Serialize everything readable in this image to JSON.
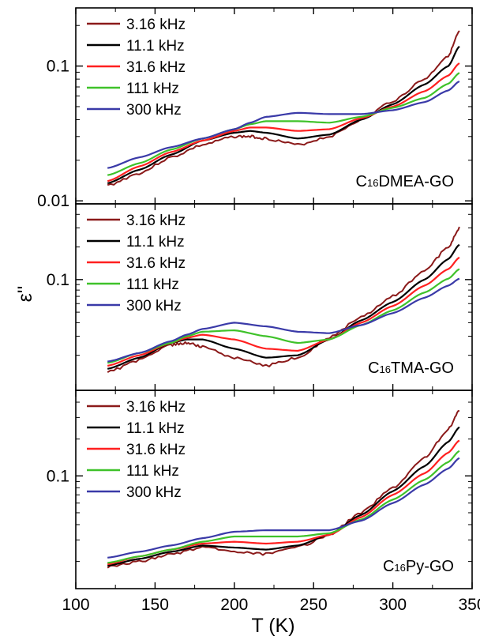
{
  "chart_data": {
    "type": "line",
    "xlabel": "T (K)",
    "ylabel": "ε''",
    "xlim": [
      100,
      350
    ],
    "x_ticks": [
      "100",
      "150",
      "200",
      "250",
      "300",
      "350"
    ],
    "y_scale": "log",
    "grid": false,
    "legend_position": "top-left",
    "series_names": [
      "3.16 kHz",
      "11.1 kHz",
      "31.6 kHz",
      "111 kHz",
      "300 kHz"
    ],
    "series_colors": [
      "#8b1a1a",
      "#000000",
      "#ff2020",
      "#3fc22a",
      "#3a3aa8"
    ],
    "panels": [
      {
        "label_prefix": "C",
        "label_sub": "16",
        "label_suffix": "DMEA-GO",
        "ylim": [
          0.0095,
          0.27
        ],
        "y_ticks": [
          {
            "value": 0.01,
            "label": "0.01"
          },
          {
            "value": 0.1,
            "label": "0.1"
          }
        ],
        "x": [
          120,
          140,
          160,
          180,
          200,
          210,
          220,
          240,
          260,
          280,
          300,
          320,
          335,
          342
        ],
        "series": [
          {
            "name": "3.16 kHz",
            "values": [
              0.013,
              0.016,
              0.021,
              0.026,
              0.03,
              0.03,
              0.029,
              0.026,
              0.03,
              0.04,
              0.055,
              0.08,
              0.12,
              0.18
            ]
          },
          {
            "name": "11.1 kHz",
            "values": [
              0.0135,
              0.017,
              0.022,
              0.028,
              0.032,
              0.033,
              0.032,
              0.029,
              0.031,
              0.04,
              0.052,
              0.073,
              0.1,
              0.14
            ]
          },
          {
            "name": "31.6 kHz",
            "values": [
              0.014,
              0.018,
              0.023,
              0.028,
              0.033,
              0.035,
              0.035,
              0.033,
              0.034,
              0.041,
              0.05,
              0.065,
              0.085,
              0.105
            ]
          },
          {
            "name": "111 kHz",
            "values": [
              0.0155,
              0.019,
              0.024,
              0.029,
              0.034,
              0.037,
              0.039,
              0.039,
              0.038,
              0.042,
              0.049,
              0.058,
              0.074,
              0.089
            ]
          },
          {
            "name": "300 kHz",
            "values": [
              0.0175,
              0.021,
              0.025,
              0.029,
              0.034,
              0.038,
              0.042,
              0.045,
              0.044,
              0.044,
              0.047,
              0.054,
              0.066,
              0.077
            ]
          }
        ]
      },
      {
        "label_prefix": "C",
        "label_sub": "16",
        "label_suffix": "TMA-GO",
        "ylim": [
          0.0095,
          0.5
        ],
        "y_ticks": [
          {
            "value": 0.1,
            "label": "0.1"
          }
        ],
        "x": [
          120,
          140,
          160,
          170,
          180,
          200,
          220,
          240,
          260,
          280,
          300,
          320,
          335,
          342
        ],
        "series": [
          {
            "name": "3.16 kHz",
            "values": [
              0.014,
              0.018,
              0.025,
              0.026,
              0.024,
              0.019,
              0.016,
              0.019,
              0.029,
              0.045,
              0.07,
              0.12,
              0.2,
              0.3
            ]
          },
          {
            "name": "11.1 kHz",
            "values": [
              0.015,
              0.019,
              0.026,
              0.028,
              0.028,
              0.023,
              0.019,
              0.02,
              0.028,
              0.042,
              0.062,
              0.1,
              0.155,
              0.21
            ]
          },
          {
            "name": "31.6 kHz",
            "values": [
              0.016,
              0.02,
              0.026,
              0.029,
              0.031,
              0.028,
              0.023,
              0.022,
              0.028,
              0.04,
              0.057,
              0.088,
              0.125,
              0.16
            ]
          },
          {
            "name": "111 kHz",
            "values": [
              0.017,
              0.021,
              0.026,
              0.03,
              0.033,
              0.034,
              0.03,
              0.026,
              0.028,
              0.038,
              0.052,
              0.076,
              0.102,
              0.125
            ]
          },
          {
            "name": "300 kHz",
            "values": [
              0.0175,
              0.021,
              0.027,
              0.031,
              0.035,
              0.04,
              0.037,
              0.033,
              0.032,
              0.038,
              0.049,
              0.068,
              0.088,
              0.102
            ]
          }
        ]
      },
      {
        "label_prefix": "C",
        "label_sub": "16",
        "label_suffix": "Py-GO",
        "ylim": [
          0.012,
          0.5
        ],
        "y_ticks": [
          {
            "value": 0.1,
            "label": "0.1"
          }
        ],
        "x": [
          120,
          140,
          160,
          180,
          200,
          220,
          240,
          260,
          280,
          300,
          320,
          335,
          342
        ],
        "series": [
          {
            "name": "3.16 kHz",
            "values": [
              0.018,
              0.02,
              0.023,
              0.026,
              0.024,
              0.023,
              0.026,
              0.033,
              0.05,
              0.08,
              0.14,
              0.24,
              0.34
            ]
          },
          {
            "name": "11.1 kHz",
            "values": [
              0.0185,
              0.021,
              0.024,
              0.027,
              0.026,
              0.025,
              0.027,
              0.033,
              0.048,
              0.075,
              0.12,
              0.19,
              0.25
            ]
          },
          {
            "name": "31.6 kHz",
            "values": [
              0.019,
              0.022,
              0.025,
              0.028,
              0.029,
              0.028,
              0.029,
              0.033,
              0.046,
              0.07,
              0.105,
              0.155,
              0.195
            ]
          },
          {
            "name": "111 kHz",
            "values": [
              0.0195,
              0.022,
              0.025,
              0.029,
              0.032,
              0.032,
              0.032,
              0.034,
              0.044,
              0.064,
              0.093,
              0.13,
              0.16
            ]
          },
          {
            "name": "300 kHz",
            "values": [
              0.0215,
              0.024,
              0.027,
              0.031,
              0.035,
              0.036,
              0.036,
              0.036,
              0.043,
              0.06,
              0.085,
              0.115,
              0.14
            ]
          }
        ]
      }
    ]
  }
}
